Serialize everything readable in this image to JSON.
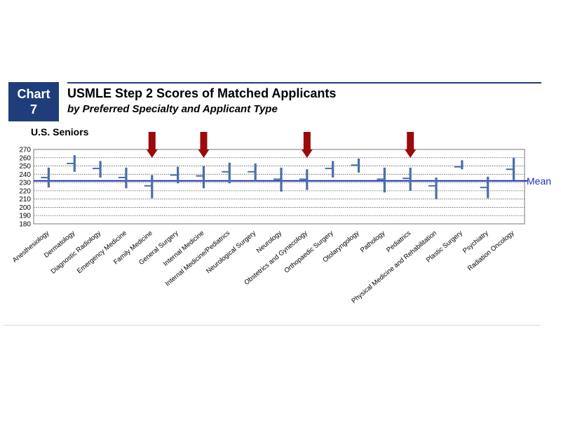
{
  "header": {
    "chart_box_line1": "Chart",
    "chart_box_line2": "7",
    "title": "USMLE Step 2 Scores of Matched Applicants",
    "subtitle": "by Preferred Specialty and Applicant Type",
    "group_label": "U.S. Seniors"
  },
  "colors": {
    "header_bg": "#1f3d7a",
    "bar": "#4a6ea8",
    "mean_line": "#1f2fb5",
    "arrow": "#9b0a0a"
  },
  "chart_data": {
    "type": "high-low-mean",
    "title": "USMLE Step 2 Scores of Matched Applicants",
    "ylim": [
      180,
      270
    ],
    "yticks": [
      180,
      190,
      200,
      210,
      220,
      230,
      240,
      250,
      260,
      270
    ],
    "grid": true,
    "mean_line": {
      "value": 232,
      "label": "Mean"
    },
    "categories": [
      "Anesthesiology",
      "Dermatology",
      "Diagnostic Radiology",
      "Emergency Medicine",
      "Family Medicine",
      "General Surgery",
      "Internal Medicine",
      "Internal Medicine/Pediatrics",
      "Neurological Surgery",
      "Neurology",
      "Obstetrics and Gynecology",
      "Orthopaedic Surgery",
      "Otolaryngology",
      "Pathology",
      "Pediatrics",
      "Physical Medicine and Rehabilitation",
      "Plastic Surgery",
      "Psychiatry",
      "Radiation Oncology"
    ],
    "series": [
      {
        "values_high": [
          248,
          263,
          256,
          248,
          239,
          249,
          250,
          254,
          253,
          248,
          246,
          256,
          259,
          248,
          248,
          236,
          257,
          237,
          260
        ]
      },
      {
        "values_low": [
          224,
          243,
          236,
          223,
          211,
          229,
          223,
          229,
          231,
          219,
          221,
          236,
          242,
          218,
          220,
          210,
          246,
          211,
          233
        ]
      },
      {
        "values_mean": [
          236,
          253,
          247,
          236,
          226,
          239,
          238,
          243,
          243,
          234,
          234,
          247,
          251,
          234,
          235,
          226,
          249,
          224,
          246
        ]
      }
    ],
    "highlighted_categories": [
      "Family Medicine",
      "Internal Medicine",
      "Obstetrics and Gynecology",
      "Pediatrics"
    ]
  }
}
